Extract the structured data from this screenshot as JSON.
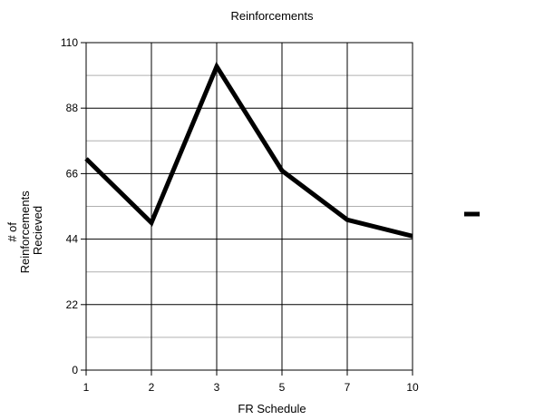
{
  "chart_data": {
    "type": "line",
    "title": "Reinforcements",
    "xlabel": "FR Schedule",
    "ylabel_lines": [
      "# of",
      "Reinforcements",
      "Recieved"
    ],
    "categories": [
      "1",
      "2",
      "3",
      "5",
      "7",
      "10"
    ],
    "series": [
      {
        "values": [
          71,
          49.5,
          102,
          67,
          50.5,
          45
        ]
      }
    ],
    "ylim": [
      0,
      110
    ],
    "yticks": [
      0,
      22,
      44,
      66,
      88,
      110
    ],
    "minor_gridlines": [
      11,
      33,
      55,
      77,
      99
    ],
    "grid": true,
    "legend": "right",
    "line_color": "#000000"
  }
}
